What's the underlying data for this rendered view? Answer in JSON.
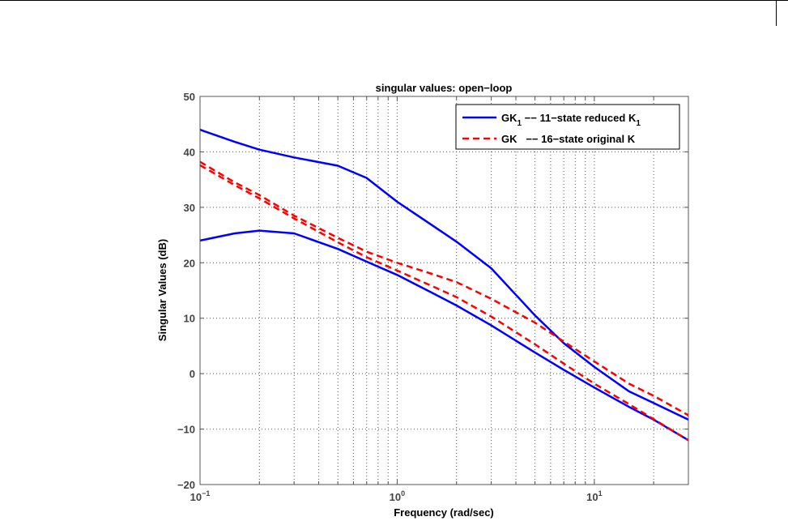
{
  "chart_data": {
    "type": "line",
    "title": "singular values: open−loop",
    "xlabel": "Frequency (rad/sec)",
    "ylabel": "Singular Values (dB)",
    "xscale": "log",
    "xlim": [
      0.1,
      30
    ],
    "ylim": [
      -20,
      50
    ],
    "grid": true,
    "legend_position": "top-right",
    "yticks": [
      -20,
      -10,
      0,
      10,
      20,
      30,
      40,
      50
    ],
    "ytick_labels": [
      "−20",
      "−10",
      "0",
      "10",
      "20",
      "30",
      "40",
      "50"
    ],
    "xticks": [
      {
        "base": "10",
        "exp": "−1",
        "value": 0.1
      },
      {
        "base": "10",
        "exp": "0",
        "value": 1
      },
      {
        "base": "10",
        "exp": "1",
        "value": 10
      }
    ],
    "legend": [
      {
        "label": "GK",
        "sub": "1",
        "text": " −− 11−state reduced K",
        "sub2": "1",
        "color": "#0000ff",
        "style": "solid"
      },
      {
        "label": "GK",
        "sub": "",
        "text": "   −− 16−state original K",
        "sub2": "",
        "color": "#ff0000",
        "style": "dashed"
      }
    ],
    "series": [
      {
        "name": "GK1 upper",
        "color": "#0000ff",
        "style": "solid",
        "x": [
          0.1,
          0.15,
          0.2,
          0.3,
          0.5,
          0.7,
          1,
          1.5,
          2,
          3,
          5,
          7,
          10,
          15,
          20,
          30
        ],
        "y": [
          44,
          41.8,
          40.4,
          39,
          37.5,
          35.3,
          31,
          26.8,
          23.8,
          19,
          10.5,
          5.5,
          1.2,
          -3.2,
          -5.3,
          -8.3
        ]
      },
      {
        "name": "GK1 lower",
        "color": "#0000ff",
        "style": "solid",
        "x": [
          0.1,
          0.15,
          0.2,
          0.3,
          0.5,
          0.7,
          1,
          1.5,
          2,
          3,
          5,
          7,
          10,
          15,
          20,
          30
        ],
        "y": [
          24,
          25.3,
          25.8,
          25.3,
          22.5,
          20.2,
          17.8,
          14.6,
          12.3,
          8.7,
          3.8,
          0.7,
          -2.5,
          -6,
          -8.3,
          -12
        ]
      },
      {
        "name": "GK upper",
        "color": "#ff0000",
        "style": "dashed",
        "x": [
          0.1,
          0.15,
          0.2,
          0.3,
          0.5,
          0.7,
          1,
          1.5,
          2,
          3,
          5,
          7,
          10,
          15,
          20,
          30
        ],
        "y": [
          38.2,
          34.5,
          32.2,
          28.5,
          24.5,
          22,
          20,
          18,
          16.5,
          13.5,
          9.2,
          5.8,
          2.2,
          -1.8,
          -4,
          -7.5
        ]
      },
      {
        "name": "GK lower",
        "color": "#ff0000",
        "style": "dashed",
        "x": [
          0.1,
          0.15,
          0.2,
          0.3,
          0.5,
          0.7,
          1,
          1.5,
          2,
          3,
          5,
          7,
          10,
          15,
          20,
          30
        ],
        "y": [
          37.6,
          34,
          31.6,
          28,
          23.7,
          21,
          18.6,
          15.8,
          13.8,
          10.3,
          5.3,
          1.8,
          -1.8,
          -5.5,
          -8.2,
          -12
        ]
      }
    ]
  }
}
